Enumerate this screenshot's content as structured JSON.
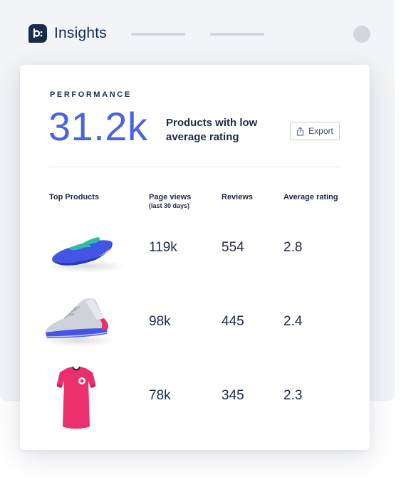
{
  "app": {
    "title": "Insights",
    "logo_icon": "b-logo-icon"
  },
  "card": {
    "section_label": "PERFORMANCE",
    "metric_value": "31.2k",
    "metric_description": "Products with low average rating",
    "export_label": "Export"
  },
  "table": {
    "headers": {
      "product": "Top Products",
      "page_views": "Page views",
      "page_views_sub": "(last 30 days)",
      "reviews": "Reviews",
      "rating": "Average rating"
    },
    "rows": [
      {
        "icon": "flip-flop-product-image",
        "page_views": "119k",
        "reviews": "554",
        "rating": "2.8"
      },
      {
        "icon": "sneaker-product-image",
        "page_views": "98k",
        "reviews": "445",
        "rating": "2.4"
      },
      {
        "icon": "tshirt-product-image",
        "page_views": "78k",
        "reviews": "345",
        "rating": "2.3"
      }
    ]
  },
  "colors": {
    "accent": "#4a63e0",
    "brand_dark": "#172b4d",
    "product_blue": "#4455e6",
    "product_pink": "#ea2f6c",
    "product_teal": "#2fb9a8"
  }
}
